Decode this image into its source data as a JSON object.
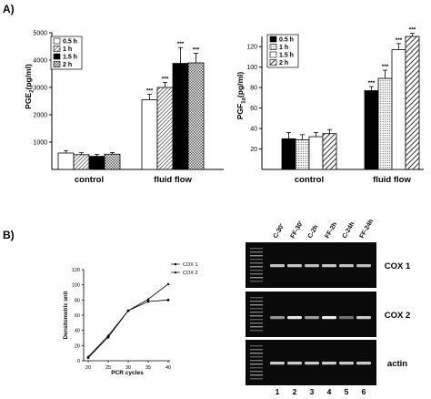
{
  "panel_a_label": "A)",
  "panel_b_label": "B)",
  "chart_data": [
    {
      "type": "bar",
      "ylabel": "PGE2(pg/ml)",
      "ylabel_main": "PGE",
      "ylabel_sub": "2",
      "ylabel_rest": "(pg/ml)",
      "ylim": [
        0,
        5000
      ],
      "yticks": [
        1000,
        2000,
        3000,
        4000,
        5000
      ],
      "categories": [
        "control",
        "fluid flow"
      ],
      "legend_position": "top-left",
      "series": [
        {
          "name": "0.5 h",
          "values": [
            600,
            2550
          ],
          "errors": [
            90,
            200
          ],
          "fill": "white"
        },
        {
          "name": "1 h",
          "values": [
            540,
            3000
          ],
          "errors": [
            70,
            180
          ],
          "fill": "diag"
        },
        {
          "name": "1.5 h",
          "values": [
            480,
            3880
          ],
          "errors": [
            70,
            580
          ],
          "fill": "black"
        },
        {
          "name": "2 h",
          "values": [
            560,
            3900
          ],
          "errors": [
            60,
            350
          ],
          "fill": "check"
        }
      ],
      "sig": [
        [
          "",
          "",
          "",
          ""
        ],
        [
          "***",
          "***",
          "***",
          "***"
        ]
      ]
    },
    {
      "type": "bar",
      "ylabel": "PGF1a(pg/ml)",
      "ylabel_main": "PGF",
      "ylabel_sub": "1a",
      "ylabel_rest": "(pg/ml)",
      "ylim": [
        0,
        130
      ],
      "yticks": [
        20,
        40,
        60,
        80,
        100,
        120
      ],
      "categories": [
        "control",
        "fluid flow"
      ],
      "legend_position": "top-left",
      "series": [
        {
          "name": "0.5 h",
          "values": [
            30,
            77
          ],
          "errors": [
            6,
            4
          ],
          "fill": "black"
        },
        {
          "name": "1 h",
          "values": [
            29,
            89
          ],
          "errors": [
            5,
            8
          ],
          "fill": "dots"
        },
        {
          "name": "1.5 h",
          "values": [
            32,
            117
          ],
          "errors": [
            4,
            6
          ],
          "fill": "white"
        },
        {
          "name": "2 h",
          "values": [
            35,
            130
          ],
          "errors": [
            4,
            3
          ],
          "fill": "hatch"
        }
      ],
      "sig": [
        [
          "",
          "",
          "",
          ""
        ],
        [
          "***",
          "***",
          "***",
          "***"
        ]
      ]
    },
    {
      "type": "line",
      "xlabel": "PCR cycles",
      "ylabel": "Densitometric unit",
      "xlim": [
        20,
        40
      ],
      "xticks": [
        20,
        25,
        30,
        35,
        40
      ],
      "ylim": [
        0,
        120
      ],
      "yticks": [
        0,
        20,
        40,
        60,
        80,
        100,
        120
      ],
      "legend_position": "top-right",
      "series": [
        {
          "name": "COX 1",
          "marker": "circle",
          "x": [
            20,
            25,
            30,
            35,
            40
          ],
          "values": [
            4,
            31,
            66,
            78,
            80
          ]
        },
        {
          "name": "COX 2",
          "marker": "triangle",
          "x": [
            20,
            25,
            30,
            35,
            40
          ],
          "values": [
            5,
            33,
            66,
            81,
            101
          ]
        }
      ]
    }
  ],
  "gel": {
    "lane_labels": [
      "C-30'",
      "FF-30'",
      "C-2h",
      "FF-2h",
      "C-24h",
      "FF-24h"
    ],
    "lane_numbers": [
      "1",
      "2",
      "3",
      "4",
      "5",
      "6"
    ],
    "rows": [
      {
        "label": "COX 1",
        "intensity": [
          0.75,
          0.78,
          0.72,
          0.78,
          0.75,
          0.72
        ]
      },
      {
        "label": "COX 2",
        "intensity": [
          0.5,
          0.95,
          0.55,
          0.98,
          0.3,
          0.8
        ]
      },
      {
        "label": "actin",
        "intensity": [
          0.8,
          0.8,
          0.8,
          0.8,
          0.8,
          0.8
        ]
      }
    ]
  }
}
